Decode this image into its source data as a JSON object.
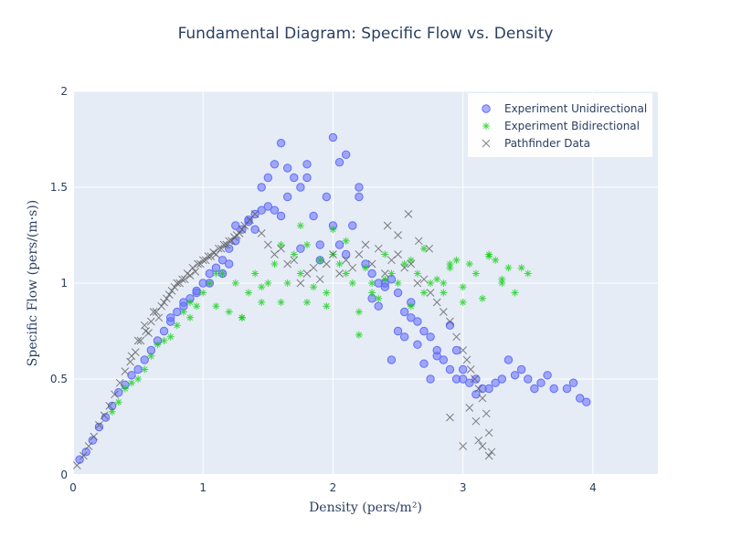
{
  "chart_data": {
    "type": "scatter",
    "title": "Fundamental Diagram: Specific Flow vs. Density",
    "xlabel": "Density (pers/m²)",
    "ylabel": "Specific Flow (pers/(m·s))",
    "xlim": [
      0,
      4.5
    ],
    "ylim": [
      0,
      2
    ],
    "x_ticks": [
      "0",
      "1",
      "2",
      "3",
      "4"
    ],
    "y_ticks": [
      "0",
      "0.5",
      "1",
      "1.5",
      "2"
    ],
    "grid": true,
    "legend_position": "top-right",
    "plot_bg": "#e5ecf6",
    "series": [
      {
        "name": "Experiment Unidirectional",
        "marker": "circle",
        "color": "#636efa",
        "x": [
          0.05,
          0.1,
          0.15,
          0.2,
          0.25,
          0.3,
          0.35,
          0.4,
          0.45,
          0.5,
          0.55,
          0.6,
          0.65,
          0.7,
          0.75,
          0.8,
          0.85,
          0.9,
          0.95,
          1.0,
          1.05,
          1.1,
          1.15,
          1.2,
          1.25,
          1.3,
          1.35,
          1.4,
          1.45,
          1.5,
          1.55,
          1.6,
          1.65,
          1.7,
          1.75,
          1.8,
          1.85,
          1.9,
          1.95,
          2.0,
          2.05,
          2.1,
          2.15,
          2.2,
          2.25,
          2.3,
          2.35,
          2.4,
          2.45,
          2.5,
          2.55,
          2.6,
          2.65,
          2.7,
          2.75,
          2.8,
          2.85,
          2.9,
          2.95,
          3.0,
          3.05,
          3.1,
          3.15,
          3.2,
          3.3,
          3.4,
          3.5,
          3.6,
          3.7,
          3.8,
          3.9,
          1.6,
          1.65,
          1.55,
          2.0,
          1.8,
          2.1,
          2.05,
          2.2,
          1.5,
          1.45,
          1.35,
          1.25,
          1.4,
          1.75,
          1.9,
          2.5,
          2.45,
          2.55,
          2.6,
          2.7,
          2.65,
          2.8,
          2.9,
          2.35,
          2.4,
          2.3,
          3.1,
          3.0,
          2.95,
          2.75,
          3.35,
          3.45,
          3.25,
          3.55,
          3.65,
          3.85,
          3.95,
          0.85,
          0.75,
          0.95,
          1.05,
          1.15,
          1.2
        ],
        "y": [
          0.08,
          0.12,
          0.18,
          0.25,
          0.3,
          0.36,
          0.43,
          0.47,
          0.52,
          0.55,
          0.6,
          0.65,
          0.7,
          0.75,
          0.8,
          0.85,
          0.88,
          0.92,
          0.96,
          1.0,
          1.05,
          1.08,
          1.12,
          1.18,
          1.22,
          1.28,
          1.33,
          1.36,
          1.38,
          1.4,
          1.38,
          1.35,
          1.45,
          1.55,
          1.5,
          1.55,
          1.35,
          1.2,
          1.45,
          1.3,
          1.2,
          1.15,
          1.3,
          1.45,
          1.1,
          1.05,
          1.0,
          0.98,
          1.02,
          0.95,
          0.85,
          0.9,
          0.8,
          0.75,
          0.72,
          0.65,
          0.6,
          0.55,
          0.5,
          0.5,
          0.48,
          0.5,
          0.45,
          0.45,
          0.5,
          0.52,
          0.5,
          0.48,
          0.45,
          0.45,
          0.4,
          1.73,
          1.6,
          1.62,
          1.76,
          1.62,
          1.67,
          1.63,
          1.5,
          1.55,
          1.5,
          1.32,
          1.3,
          1.28,
          1.18,
          1.12,
          0.75,
          0.6,
          0.72,
          0.82,
          0.58,
          0.68,
          0.62,
          0.78,
          0.88,
          1.0,
          0.92,
          0.42,
          0.55,
          0.65,
          0.5,
          0.6,
          0.55,
          0.48,
          0.45,
          0.52,
          0.48,
          0.38,
          0.9,
          0.82,
          0.95,
          1.0,
          1.05,
          1.1
        ]
      },
      {
        "name": "Experiment Bidirectional",
        "marker": "asterisk",
        "color": "#00cc00",
        "x": [
          0.3,
          0.35,
          0.4,
          0.45,
          0.5,
          0.55,
          0.6,
          0.65,
          0.7,
          0.75,
          0.8,
          0.85,
          0.9,
          0.95,
          1.0,
          1.05,
          1.1,
          1.15,
          1.2,
          1.25,
          1.3,
          1.35,
          1.4,
          1.45,
          1.5,
          1.55,
          1.6,
          1.65,
          1.7,
          1.75,
          1.8,
          1.85,
          1.9,
          1.95,
          2.0,
          2.05,
          2.1,
          2.15,
          2.2,
          2.25,
          2.3,
          2.35,
          2.4,
          2.45,
          2.5,
          2.55,
          2.6,
          2.65,
          2.7,
          2.75,
          2.8,
          2.85,
          2.9,
          2.95,
          3.0,
          3.05,
          3.1,
          3.15,
          3.2,
          3.25,
          3.3,
          3.35,
          3.4,
          3.45,
          3.5,
          1.3,
          1.45,
          1.8,
          2.0,
          2.3,
          2.6,
          2.9,
          3.2,
          3.3,
          0.9,
          1.1,
          1.6,
          2.1,
          2.4,
          2.7,
          1.75,
          1.95,
          2.85,
          3.0,
          2.2
        ],
        "y": [
          0.33,
          0.38,
          0.45,
          0.48,
          0.5,
          0.55,
          0.62,
          0.68,
          0.7,
          0.72,
          0.78,
          0.85,
          0.9,
          0.88,
          0.95,
          1.0,
          0.88,
          1.05,
          0.85,
          1.0,
          0.82,
          0.95,
          1.05,
          0.98,
          1.0,
          1.1,
          0.9,
          1.0,
          1.15,
          1.05,
          1.2,
          0.98,
          1.12,
          0.95,
          1.28,
          1.1,
          1.05,
          1.0,
          0.85,
          1.08,
          1.0,
          0.92,
          1.15,
          1.05,
          1.0,
          1.1,
          1.12,
          1.05,
          0.95,
          1.0,
          1.02,
          0.95,
          1.08,
          1.12,
          0.98,
          1.1,
          1.05,
          0.92,
          1.15,
          1.12,
          1.0,
          1.08,
          0.95,
          1.08,
          1.05,
          0.82,
          0.9,
          0.9,
          1.15,
          0.95,
          0.88,
          1.1,
          1.14,
          1.02,
          0.82,
          1.05,
          1.2,
          1.22,
          1.02,
          1.18,
          1.3,
          0.88,
          1.0,
          0.9,
          0.73
        ]
      },
      {
        "name": "Pathfinder Data",
        "marker": "x",
        "color": "#555555",
        "x": [
          0.03,
          0.08,
          0.12,
          0.16,
          0.2,
          0.24,
          0.28,
          0.32,
          0.36,
          0.4,
          0.44,
          0.48,
          0.52,
          0.56,
          0.6,
          0.64,
          0.68,
          0.72,
          0.76,
          0.8,
          0.84,
          0.88,
          0.92,
          0.96,
          1.0,
          1.04,
          1.08,
          1.12,
          1.16,
          1.2,
          1.24,
          1.28,
          1.32,
          1.36,
          1.4,
          1.45,
          1.5,
          1.55,
          1.6,
          1.65,
          1.7,
          1.75,
          1.8,
          1.85,
          1.9,
          1.95,
          2.0,
          2.05,
          2.1,
          2.15,
          2.2,
          2.25,
          2.3,
          2.35,
          2.4,
          2.45,
          2.5,
          2.55,
          2.6,
          2.65,
          2.7,
          2.75,
          2.8,
          2.85,
          2.9,
          2.95,
          3.0,
          3.03,
          3.06,
          3.09,
          3.12,
          3.15,
          3.18,
          3.2,
          3.22,
          3.1,
          3.15,
          3.05,
          2.9,
          3.0,
          3.12,
          3.2,
          0.5,
          0.55,
          0.62,
          0.7,
          0.78,
          0.86,
          0.94,
          1.02,
          1.1,
          1.18,
          1.26,
          0.45,
          0.58,
          0.66,
          0.74,
          0.82,
          0.9,
          0.98,
          1.06,
          1.14,
          1.22,
          1.3,
          2.5,
          2.42,
          2.58,
          2.66,
          2.74
        ],
        "y": [
          0.05,
          0.1,
          0.15,
          0.2,
          0.26,
          0.31,
          0.36,
          0.42,
          0.48,
          0.54,
          0.59,
          0.64,
          0.7,
          0.75,
          0.8,
          0.85,
          0.88,
          0.92,
          0.96,
          1.0,
          1.02,
          1.05,
          1.08,
          1.1,
          1.12,
          1.14,
          1.16,
          1.18,
          1.2,
          1.22,
          1.24,
          1.26,
          1.3,
          1.33,
          1.36,
          1.26,
          1.2,
          1.15,
          1.18,
          1.1,
          1.12,
          1.0,
          1.05,
          1.08,
          1.02,
          1.1,
          1.15,
          1.05,
          1.12,
          1.08,
          1.15,
          1.2,
          1.1,
          1.18,
          1.05,
          1.12,
          1.15,
          1.08,
          1.1,
          1.0,
          1.02,
          0.95,
          0.9,
          0.85,
          0.8,
          0.72,
          0.65,
          0.6,
          0.55,
          0.5,
          0.45,
          0.4,
          0.32,
          0.22,
          0.12,
          0.28,
          0.15,
          0.35,
          0.3,
          0.15,
          0.18,
          0.1,
          0.7,
          0.78,
          0.85,
          0.9,
          0.98,
          1.02,
          1.06,
          1.12,
          1.15,
          1.2,
          1.25,
          0.62,
          0.74,
          0.82,
          0.94,
          1.0,
          1.04,
          1.1,
          1.14,
          1.18,
          1.22,
          1.28,
          1.25,
          1.3,
          1.36,
          1.22,
          1.18
        ]
      }
    ]
  }
}
